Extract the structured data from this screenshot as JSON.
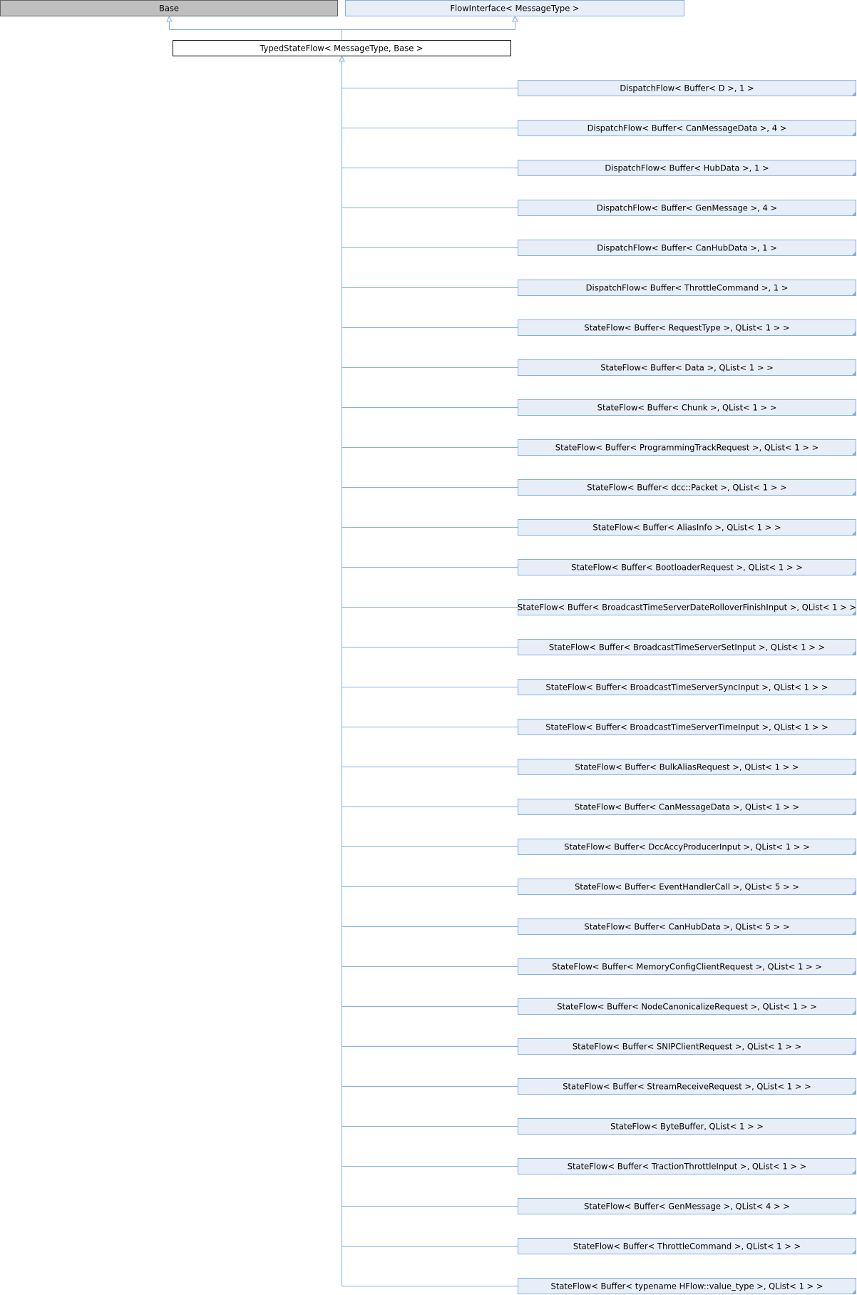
{
  "diagram": {
    "type": "inheritance-graph",
    "colors": {
      "line": "#84b0e0",
      "node_border": "#84b0e0",
      "node_fill": "#e8eef7",
      "base_fill": "#bfbfbf",
      "base_border": "#666666",
      "focus_fill": "#ffffff",
      "focus_border": "#000000",
      "text": "#000000"
    },
    "bases": [
      {
        "id": "base",
        "label": "Base",
        "style": "external"
      },
      {
        "id": "flow-interface",
        "label": "FlowInterface< MessageType >",
        "style": "documented"
      }
    ],
    "focus": {
      "id": "typed-state-flow",
      "label": "TypedStateFlow< MessageType, Base >"
    },
    "derived": [
      "DispatchFlow< Buffer< D >, 1 >",
      "DispatchFlow< Buffer< CanMessageData >, 4 >",
      "DispatchFlow< Buffer< HubData >, 1 >",
      "DispatchFlow< Buffer< GenMessage >, 4 >",
      "DispatchFlow< Buffer< CanHubData >, 1 >",
      "DispatchFlow< Buffer< ThrottleCommand >, 1 >",
      "StateFlow< Buffer< RequestType >, QList< 1 > >",
      "StateFlow< Buffer< Data >, QList< 1 > >",
      "StateFlow< Buffer< Chunk >, QList< 1 > >",
      "StateFlow< Buffer< ProgrammingTrackRequest >, QList< 1 > >",
      "StateFlow< Buffer< dcc::Packet >, QList< 1 > >",
      "StateFlow< Buffer< AliasInfo >, QList< 1 > >",
      "StateFlow< Buffer< BootloaderRequest >, QList< 1 > >",
      "StateFlow< Buffer< BroadcastTimeServerDateRolloverFinishInput >, QList< 1 > >",
      "StateFlow< Buffer< BroadcastTimeServerSetInput >, QList< 1 > >",
      "StateFlow< Buffer< BroadcastTimeServerSyncInput >, QList< 1 > >",
      "StateFlow< Buffer< BroadcastTimeServerTimeInput >, QList< 1 > >",
      "StateFlow< Buffer< BulkAliasRequest >, QList< 1 > >",
      "StateFlow< Buffer< CanMessageData >, QList< 1 > >",
      "StateFlow< Buffer< DccAccyProducerInput >, QList< 1 > >",
      "StateFlow< Buffer< EventHandlerCall >, QList< 5 > >",
      "StateFlow< Buffer< CanHubData >, QList< 5 > >",
      "StateFlow< Buffer< MemoryConfigClientRequest >, QList< 1 > >",
      "StateFlow< Buffer< NodeCanonicalizeRequest >, QList< 1 > >",
      "StateFlow< Buffer< SNIPClientRequest >, QList< 1 > >",
      "StateFlow< Buffer< StreamReceiveRequest >, QList< 1 > >",
      "StateFlow< ByteBuffer, QList< 1 > >",
      "StateFlow< Buffer< TractionThrottleInput >, QList< 1 > >",
      "StateFlow< Buffer< GenMessage >, QList< 4 > >",
      "StateFlow< Buffer< ThrottleCommand >, QList< 1 > >",
      "StateFlow< Buffer< typename HFlow::value_type >, QList< 1 > >"
    ]
  }
}
